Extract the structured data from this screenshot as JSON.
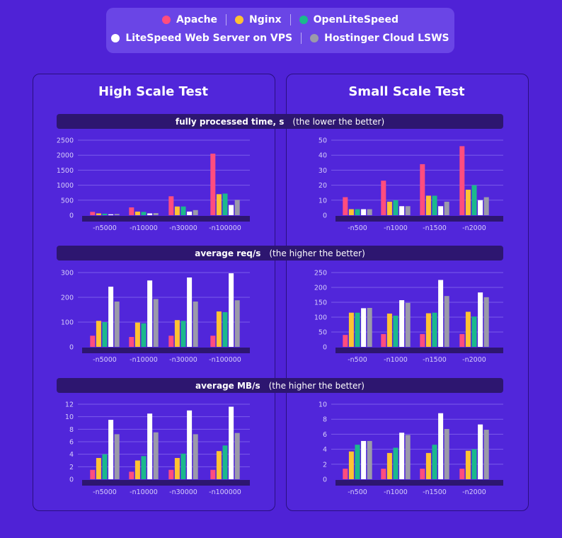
{
  "legend": {
    "series": [
      {
        "name": "Apache",
        "color": "#ff4d7e"
      },
      {
        "name": "Nginx",
        "color": "#ffc233"
      },
      {
        "name": "OpenLiteSpeed",
        "color": "#1bb98c"
      },
      {
        "name": "LiteSpeed Web Server on VPS",
        "color": "#ffffff"
      },
      {
        "name": "Hostinger Cloud LSWS",
        "color": "#9b9aaa"
      }
    ]
  },
  "panels": {
    "left_title": "High Scale Test",
    "right_title": "Small Scale Test"
  },
  "sections": [
    {
      "label": "fully processed time, s",
      "note": "(the lower the better)"
    },
    {
      "label": "average req/s",
      "note": "(the higher the better)"
    },
    {
      "label": "average MB/s",
      "note": "(the higher the better)"
    }
  ],
  "chart_data": [
    {
      "type": "bar",
      "panel": "High Scale Test",
      "metric": "fully processed time, s",
      "categories": [
        "-n5000",
        "-n10000",
        "-n30000",
        "-n100000"
      ],
      "yticks": [
        0,
        500,
        1000,
        1500,
        2000,
        2500
      ],
      "ylim": [
        0,
        2500
      ],
      "series": [
        {
          "name": "Apache",
          "values": [
            110,
            260,
            630,
            2050
          ]
        },
        {
          "name": "Nginx",
          "values": [
            60,
            120,
            290,
            700
          ]
        },
        {
          "name": "OpenLiteSpeed",
          "values": [
            50,
            110,
            290,
            720
          ]
        },
        {
          "name": "LiteSpeed Web Server on VPS",
          "values": [
            30,
            60,
            120,
            340
          ]
        },
        {
          "name": "Hostinger Cloud LSWS",
          "values": [
            40,
            70,
            170,
            510
          ]
        }
      ]
    },
    {
      "type": "bar",
      "panel": "Small Scale Test",
      "metric": "fully processed time, s",
      "categories": [
        "-n500",
        "-n1000",
        "-n1500",
        "-n2000"
      ],
      "yticks": [
        0,
        10,
        20,
        30,
        40,
        50
      ],
      "ylim": [
        0,
        50
      ],
      "series": [
        {
          "name": "Apache",
          "values": [
            12,
            23,
            34,
            46
          ]
        },
        {
          "name": "Nginx",
          "values": [
            4,
            9,
            13,
            17
          ]
        },
        {
          "name": "OpenLiteSpeed",
          "values": [
            4,
            10,
            13,
            20
          ]
        },
        {
          "name": "LiteSpeed Web Server on VPS",
          "values": [
            4,
            6,
            6,
            10
          ]
        },
        {
          "name": "Hostinger Cloud LSWS",
          "values": [
            4,
            6,
            9,
            12
          ]
        }
      ]
    },
    {
      "type": "bar",
      "panel": "High Scale Test",
      "metric": "average req/s",
      "categories": [
        "-n5000",
        "-n10000",
        "-n30000",
        "-n100000"
      ],
      "yticks": [
        0,
        100,
        200,
        300
      ],
      "ylim": [
        0,
        300
      ],
      "series": [
        {
          "name": "Apache",
          "values": [
            45,
            40,
            45,
            45
          ]
        },
        {
          "name": "Nginx",
          "values": [
            105,
            98,
            108,
            143
          ]
        },
        {
          "name": "OpenLiteSpeed",
          "values": [
            100,
            95,
            105,
            140
          ]
        },
        {
          "name": "LiteSpeed Web Server on VPS",
          "values": [
            243,
            268,
            280,
            297
          ]
        },
        {
          "name": "Hostinger Cloud LSWS",
          "values": [
            183,
            193,
            183,
            188
          ]
        }
      ]
    },
    {
      "type": "bar",
      "panel": "Small Scale Test",
      "metric": "average req/s",
      "categories": [
        "-n500",
        "-n1000",
        "-n1500",
        "-n2000"
      ],
      "yticks": [
        0,
        50,
        100,
        150,
        200,
        250
      ],
      "ylim": [
        0,
        250
      ],
      "series": [
        {
          "name": "Apache",
          "values": [
            40,
            43,
            43,
            43
          ]
        },
        {
          "name": "Nginx",
          "values": [
            115,
            112,
            113,
            118
          ]
        },
        {
          "name": "OpenLiteSpeed",
          "values": [
            115,
            105,
            115,
            102
          ]
        },
        {
          "name": "LiteSpeed Web Server on VPS",
          "values": [
            130,
            157,
            225,
            183
          ]
        },
        {
          "name": "Hostinger Cloud LSWS",
          "values": [
            131,
            148,
            171,
            167
          ]
        }
      ]
    },
    {
      "type": "bar",
      "panel": "High Scale Test",
      "metric": "average MB/s",
      "categories": [
        "-n5000",
        "-n10000",
        "-n30000",
        "-n100000"
      ],
      "yticks": [
        0,
        2,
        4,
        6,
        8,
        10,
        12
      ],
      "ylim": [
        0,
        12
      ],
      "series": [
        {
          "name": "Apache",
          "values": [
            1.5,
            1.2,
            1.5,
            1.5
          ]
        },
        {
          "name": "Nginx",
          "values": [
            3.4,
            3.0,
            3.4,
            4.5
          ]
        },
        {
          "name": "OpenLiteSpeed",
          "values": [
            4.0,
            3.7,
            4.1,
            5.4
          ]
        },
        {
          "name": "LiteSpeed Web Server on VPS",
          "values": [
            9.5,
            10.5,
            11.0,
            11.6
          ]
        },
        {
          "name": "Hostinger Cloud LSWS",
          "values": [
            7.2,
            7.5,
            7.2,
            7.4
          ]
        }
      ]
    },
    {
      "type": "bar",
      "panel": "Small Scale Test",
      "metric": "average MB/s",
      "categories": [
        "-n500",
        "-n1000",
        "-n1500",
        "-n2000"
      ],
      "yticks": [
        0,
        2,
        4,
        6,
        8,
        10
      ],
      "ylim": [
        0,
        10
      ],
      "series": [
        {
          "name": "Apache",
          "values": [
            1.4,
            1.4,
            1.4,
            1.4
          ]
        },
        {
          "name": "Nginx",
          "values": [
            3.7,
            3.5,
            3.5,
            3.8
          ]
        },
        {
          "name": "OpenLiteSpeed",
          "values": [
            4.6,
            4.2,
            4.6,
            4.0
          ]
        },
        {
          "name": "LiteSpeed Web Server on VPS",
          "values": [
            5.1,
            6.2,
            8.8,
            7.3
          ]
        },
        {
          "name": "Hostinger Cloud LSWS",
          "values": [
            5.1,
            5.9,
            6.7,
            6.6
          ]
        }
      ]
    }
  ]
}
